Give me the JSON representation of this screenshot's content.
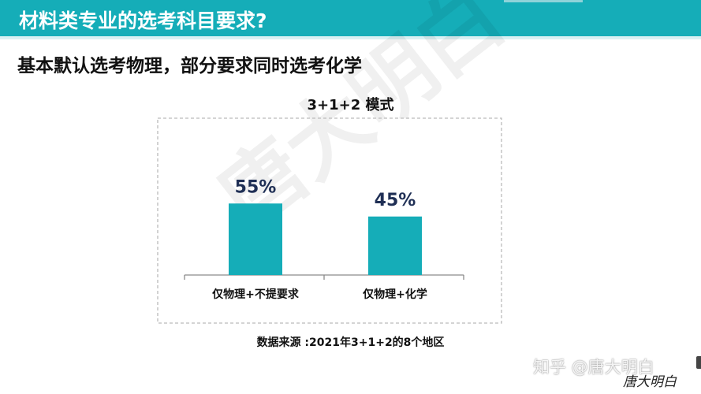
{
  "header": {
    "title": "材料类专业的选考科目要求?"
  },
  "subtitle": "基本默认选考物理，部分要求同时选考化学",
  "chart_data": {
    "type": "bar",
    "title": "3+1+2 模式",
    "categories": [
      "仅物理+不提要求",
      "仅物理+化学"
    ],
    "values": [
      55,
      45
    ],
    "value_labels": [
      "55%",
      "45%"
    ],
    "unit": "%",
    "ylim": [
      0,
      100
    ],
    "bar_color": "#15adb8",
    "grid": false,
    "legend": "none",
    "source": "数据来源 :2021年3+1+2的8个地区"
  },
  "watermarks": {
    "background": "唐大明白",
    "zhihu": "知乎 @唐大明白",
    "signature": "唐大明白"
  },
  "colors": {
    "header": "#15adb8",
    "bar": "#15adb8",
    "value_text": "#1f2f55"
  }
}
